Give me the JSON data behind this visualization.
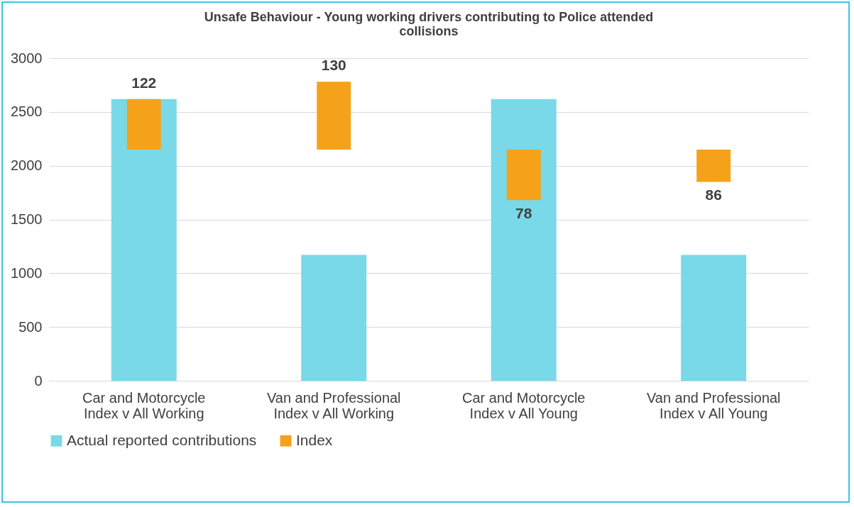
{
  "chart_data": {
    "type": "bar",
    "title": "Unsafe Behaviour - Young working drivers contributing to Police attended\ncollisions",
    "categories": [
      "Car and Motorcycle\nIndex v All Working",
      "Van and Professional\nIndex v All Working",
      "Car and Motorcycle\nIndex v All Young",
      "Van and Professional\nIndex v All Young"
    ],
    "series": [
      {
        "name": "Actual reported contributions",
        "color": "#79d9e8",
        "values": [
          2620,
          1170,
          2620,
          1170
        ]
      },
      {
        "name": "Index",
        "color": "#f5a21a",
        "base": [
          2150,
          2150,
          2150,
          2150
        ],
        "values": [
          470,
          630,
          -470,
          -300
        ]
      }
    ],
    "annotations": [
      {
        "text": "122",
        "x": "Car and Motorcycle\nIndex v All Working",
        "y": 2620
      },
      {
        "text": "130",
        "x": "Van and Professional\nIndex v All Working",
        "y": 2780
      },
      {
        "text": "78",
        "x": "Car and Motorcycle\nIndex v All Young",
        "y": 1680
      },
      {
        "text": "86",
        "x": "Van and Professional\nIndex v All Young",
        "y": 1850
      }
    ],
    "ylim": [
      0,
      3000
    ],
    "yticks": [
      0,
      500,
      1000,
      1500,
      2000,
      2500,
      3000
    ],
    "grid": "y",
    "legend": "bottom"
  }
}
